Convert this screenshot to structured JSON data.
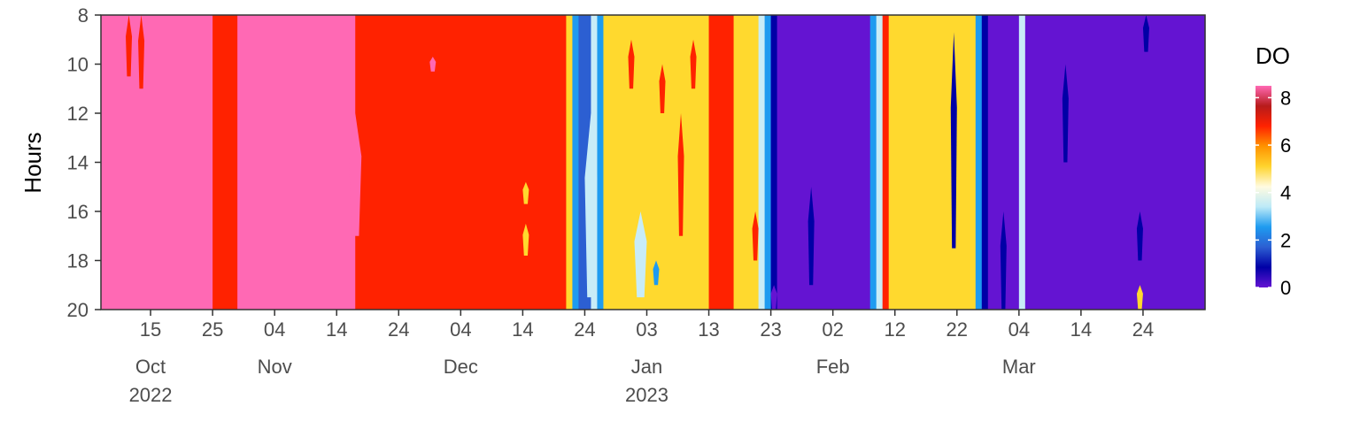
{
  "chart_data": {
    "type": "heatmap",
    "title": "",
    "xlabel": "",
    "ylabel": "Hours",
    "x_axis": {
      "kind": "date",
      "range": [
        "2022-10-07",
        "2023-04-03"
      ],
      "ticks": [
        {
          "date": "2022-10-15",
          "day": "15",
          "month": "Oct",
          "year": "2022"
        },
        {
          "date": "2022-10-25",
          "day": "25",
          "month": "",
          "year": ""
        },
        {
          "date": "2022-11-04",
          "day": "04",
          "month": "Nov",
          "year": ""
        },
        {
          "date": "2022-11-14",
          "day": "14",
          "month": "",
          "year": ""
        },
        {
          "date": "2022-11-24",
          "day": "24",
          "month": "",
          "year": ""
        },
        {
          "date": "2022-12-04",
          "day": "04",
          "month": "Dec",
          "year": ""
        },
        {
          "date": "2022-12-14",
          "day": "14",
          "month": "",
          "year": ""
        },
        {
          "date": "2022-12-24",
          "day": "24",
          "month": "",
          "year": ""
        },
        {
          "date": "2023-01-03",
          "day": "03",
          "month": "Jan",
          "year": "2023"
        },
        {
          "date": "2023-01-13",
          "day": "13",
          "month": "",
          "year": ""
        },
        {
          "date": "2023-01-23",
          "day": "23",
          "month": "",
          "year": ""
        },
        {
          "date": "2023-02-02",
          "day": "02",
          "month": "Feb",
          "year": ""
        },
        {
          "date": "2023-02-12",
          "day": "12",
          "month": "",
          "year": ""
        },
        {
          "date": "2023-02-22",
          "day": "22",
          "month": "",
          "year": ""
        },
        {
          "date": "2023-03-04",
          "day": "04",
          "month": "Mar",
          "year": ""
        },
        {
          "date": "2023-03-14",
          "day": "14",
          "month": "",
          "year": ""
        },
        {
          "date": "2023-03-24",
          "day": "24",
          "month": "",
          "year": ""
        }
      ]
    },
    "y_axis": {
      "ylim": [
        8,
        20
      ],
      "reversed": true,
      "ticks": [
        {
          "value": 8,
          "label": "8"
        },
        {
          "value": 10,
          "label": "10"
        },
        {
          "value": 12,
          "label": "12"
        },
        {
          "value": 14,
          "label": "14"
        },
        {
          "value": 16,
          "label": "16"
        },
        {
          "value": 18,
          "label": "18"
        },
        {
          "value": 20,
          "label": "20"
        }
      ]
    },
    "legend": {
      "title": "DO",
      "placement": "right",
      "range": [
        0,
        8.5
      ],
      "ticks": [
        {
          "value": 0,
          "label": "0"
        },
        {
          "value": 2,
          "label": "2"
        },
        {
          "value": 4,
          "label": "4"
        },
        {
          "value": 6,
          "label": "6"
        },
        {
          "value": 8,
          "label": "8"
        }
      ],
      "colors": [
        "#6414d2",
        "#0000a6",
        "#2c5fd2",
        "#1e9bf0",
        "#bdeaf7",
        "#fffbe0",
        "#ffd42e",
        "#ff9300",
        "#ff2200",
        "#b71b1b",
        "#ff69b4"
      ]
    },
    "levels": [
      {
        "name": "L0",
        "value": 0.5,
        "color": "#6414d2"
      },
      {
        "name": "L1",
        "value": 2.0,
        "color": "#0000a6"
      },
      {
        "name": "L2",
        "value": 3.2,
        "color": "#2c5fd2"
      },
      {
        "name": "L3",
        "value": 4.2,
        "color": "#1e9bf0"
      },
      {
        "name": "L4",
        "value": 5.2,
        "color": "#c8ecf7"
      },
      {
        "name": "L5",
        "value": 6.6,
        "color": "#ffd92e"
      },
      {
        "name": "L6",
        "value": 7.6,
        "color": "#ff2200"
      },
      {
        "name": "L7",
        "value": 8.4,
        "color": "#ff69b4"
      }
    ],
    "bands": [
      {
        "start": "2022-10-07",
        "end": "2022-10-25",
        "value": 8.4
      },
      {
        "start": "2022-10-25",
        "end": "2022-10-29",
        "value": 7.6
      },
      {
        "start": "2022-10-29",
        "end": "2022-11-17",
        "value": 8.4
      },
      {
        "start": "2022-11-17",
        "end": "2022-12-21",
        "value": 7.6
      },
      {
        "start": "2022-12-21",
        "end": "2022-12-22",
        "value": 6.6
      },
      {
        "start": "2022-12-22",
        "end": "2022-12-23",
        "value": 4.2
      },
      {
        "start": "2022-12-23",
        "end": "2022-12-25",
        "value": 3.2
      },
      {
        "start": "2022-12-25",
        "end": "2022-12-26",
        "value": 5.2
      },
      {
        "start": "2022-12-26",
        "end": "2022-12-27",
        "value": 4.2
      },
      {
        "start": "2022-12-27",
        "end": "2023-01-13",
        "value": 6.6
      },
      {
        "start": "2023-01-13",
        "end": "2023-01-17",
        "value": 7.6
      },
      {
        "start": "2023-01-17",
        "end": "2023-01-21",
        "value": 6.6
      },
      {
        "start": "2023-01-21",
        "end": "2023-01-22",
        "value": 5.2
      },
      {
        "start": "2023-01-22",
        "end": "2023-01-23",
        "value": 4.2
      },
      {
        "start": "2023-01-23",
        "end": "2023-01-24",
        "value": 2.0
      },
      {
        "start": "2023-01-24",
        "end": "2023-02-08",
        "value": 0.5
      },
      {
        "start": "2023-02-08",
        "end": "2023-02-09",
        "value": 4.2
      },
      {
        "start": "2023-02-09",
        "end": "2023-02-10",
        "value": 5.2
      },
      {
        "start": "2023-02-10",
        "end": "2023-02-11",
        "value": 7.6
      },
      {
        "start": "2023-02-11",
        "end": "2023-02-25",
        "value": 6.6
      },
      {
        "start": "2023-02-25",
        "end": "2023-02-26",
        "value": 4.2
      },
      {
        "start": "2023-02-26",
        "end": "2023-02-27",
        "value": 2.0
      },
      {
        "start": "2023-02-27",
        "end": "2023-03-04",
        "value": 0.5
      },
      {
        "start": "2023-03-04",
        "end": "2023-03-05",
        "value": 5.2
      },
      {
        "start": "2023-03-05",
        "end": "2023-04-03",
        "value": 0.5
      }
    ],
    "patches": [
      {
        "start": "2022-10-11",
        "end": "2022-10-12",
        "hour_from": 8,
        "hour_to": 10.5,
        "value": 7.6
      },
      {
        "start": "2022-10-13",
        "end": "2022-10-14",
        "hour_from": 8,
        "hour_to": 11,
        "value": 7.6
      },
      {
        "start": "2022-11-16",
        "end": "2022-11-18",
        "hour_from": 12,
        "hour_to": 17,
        "value": 8.4
      },
      {
        "start": "2022-11-29",
        "end": "2022-11-30",
        "hour_from": 9.7,
        "hour_to": 10.3,
        "value": 8.4
      },
      {
        "start": "2022-12-14",
        "end": "2022-12-15",
        "hour_from": 14.8,
        "hour_to": 15.7,
        "value": 6.6
      },
      {
        "start": "2022-12-14",
        "end": "2022-12-15",
        "hour_from": 16.5,
        "hour_to": 17.8,
        "value": 6.6
      },
      {
        "start": "2022-12-24",
        "end": "2022-12-26",
        "hour_from": 12,
        "hour_to": 19.5,
        "value": 5.2
      },
      {
        "start": "2022-12-31",
        "end": "2023-01-01",
        "hour_from": 9,
        "hour_to": 11,
        "value": 7.6
      },
      {
        "start": "2023-01-01",
        "end": "2023-01-03",
        "hour_from": 16,
        "hour_to": 19.5,
        "value": 5.2
      },
      {
        "start": "2023-01-04",
        "end": "2023-01-05",
        "hour_from": 18,
        "hour_to": 19,
        "value": 4.2
      },
      {
        "start": "2023-01-05",
        "end": "2023-01-06",
        "hour_from": 10,
        "hour_to": 12,
        "value": 7.6
      },
      {
        "start": "2023-01-08",
        "end": "2023-01-09",
        "hour_from": 12,
        "hour_to": 17,
        "value": 7.6
      },
      {
        "start": "2023-01-10",
        "end": "2023-01-11",
        "hour_from": 9,
        "hour_to": 11,
        "value": 7.6
      },
      {
        "start": "2023-01-20",
        "end": "2023-01-21",
        "hour_from": 16,
        "hour_to": 18,
        "value": 7.6
      },
      {
        "start": "2023-01-23",
        "end": "2023-01-24",
        "hour_from": 19,
        "hour_to": 20,
        "value": 0.5
      },
      {
        "start": "2023-01-29",
        "end": "2023-01-30",
        "hour_from": 15,
        "hour_to": 19,
        "value": 2.0
      },
      {
        "start": "2023-02-21",
        "end": "2023-02-22",
        "hour_from": 8.7,
        "hour_to": 17.5,
        "value": 2.0
      },
      {
        "start": "2023-03-01",
        "end": "2023-03-02",
        "hour_from": 16,
        "hour_to": 20,
        "value": 2.0
      },
      {
        "start": "2023-03-11",
        "end": "2023-03-12",
        "hour_from": 10,
        "hour_to": 14,
        "value": 2.0
      },
      {
        "start": "2023-03-23",
        "end": "2023-03-24",
        "hour_from": 16,
        "hour_to": 18,
        "value": 2.0
      },
      {
        "start": "2023-03-24",
        "end": "2023-03-25",
        "hour_from": 8,
        "hour_to": 9.5,
        "value": 2.0
      },
      {
        "start": "2023-03-23",
        "end": "2023-03-24",
        "hour_from": 19,
        "hour_to": 20,
        "value": 6.6
      }
    ]
  }
}
